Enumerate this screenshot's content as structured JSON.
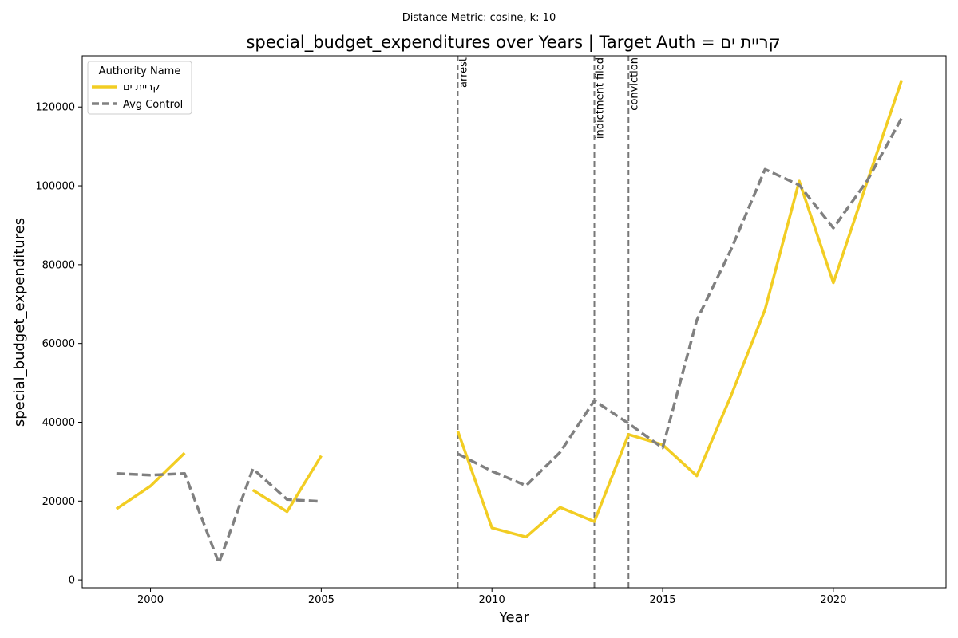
{
  "suptitle": "Distance Metric: cosine, k: 10",
  "chart_data": {
    "type": "line",
    "title": "special_budget_expenditures over Years | Target Auth = קריית ים",
    "xlabel": "Year",
    "ylabel": "special_budget_expenditures",
    "xlim": [
      1998,
      2023.3
    ],
    "ylim": [
      -2000,
      133000
    ],
    "xticks": [
      2000,
      2005,
      2010,
      2015,
      2020
    ],
    "yticks": [
      0,
      20000,
      40000,
      60000,
      80000,
      100000,
      120000
    ],
    "grid": false,
    "legend": {
      "title": "Authority Name",
      "position": "top-left"
    },
    "series": [
      {
        "name": "קריית ים",
        "color": "#f2cd23",
        "style": "solid",
        "points": [
          [
            1999,
            18000
          ],
          [
            2000,
            23800
          ],
          [
            2001,
            32200
          ],
          [
            2002,
            null
          ],
          [
            2003,
            22800
          ],
          [
            2004,
            17300
          ],
          [
            2005,
            31500
          ],
          [
            2006,
            null
          ],
          [
            2007,
            null
          ],
          [
            2008,
            null
          ],
          [
            2009,
            37800
          ],
          [
            2010,
            13200
          ],
          [
            2011,
            10900
          ],
          [
            2012,
            18400
          ],
          [
            2013,
            14800
          ],
          [
            2014,
            36900
          ],
          [
            2015,
            34300
          ],
          [
            2016,
            26400
          ],
          [
            2017,
            46700
          ],
          [
            2018,
            68600
          ],
          [
            2019,
            101200
          ],
          [
            2020,
            75400
          ],
          [
            2021,
            101300
          ],
          [
            2022,
            126800
          ]
        ]
      },
      {
        "name": "Avg Control",
        "color": "#808080",
        "style": "dashed",
        "points": [
          [
            1999,
            27000
          ],
          [
            2000,
            26600
          ],
          [
            2001,
            27000
          ],
          [
            2002,
            4300
          ],
          [
            2003,
            28200
          ],
          [
            2004,
            20400
          ],
          [
            2005,
            19900
          ],
          [
            2006,
            null
          ],
          [
            2007,
            null
          ],
          [
            2008,
            null
          ],
          [
            2009,
            32000
          ],
          [
            2010,
            27600
          ],
          [
            2011,
            23900
          ],
          [
            2012,
            32400
          ],
          [
            2013,
            45500
          ],
          [
            2014,
            39700
          ],
          [
            2015,
            33500
          ],
          [
            2016,
            65900
          ],
          [
            2017,
            83800
          ],
          [
            2018,
            104200
          ],
          [
            2019,
            100200
          ],
          [
            2020,
            89300
          ],
          [
            2021,
            101400
          ],
          [
            2022,
            117200
          ]
        ]
      }
    ],
    "events": [
      {
        "year": 2009,
        "label": "arrest"
      },
      {
        "year": 2013,
        "label": "indictment filed"
      },
      {
        "year": 2014,
        "label": "conviction"
      }
    ]
  }
}
